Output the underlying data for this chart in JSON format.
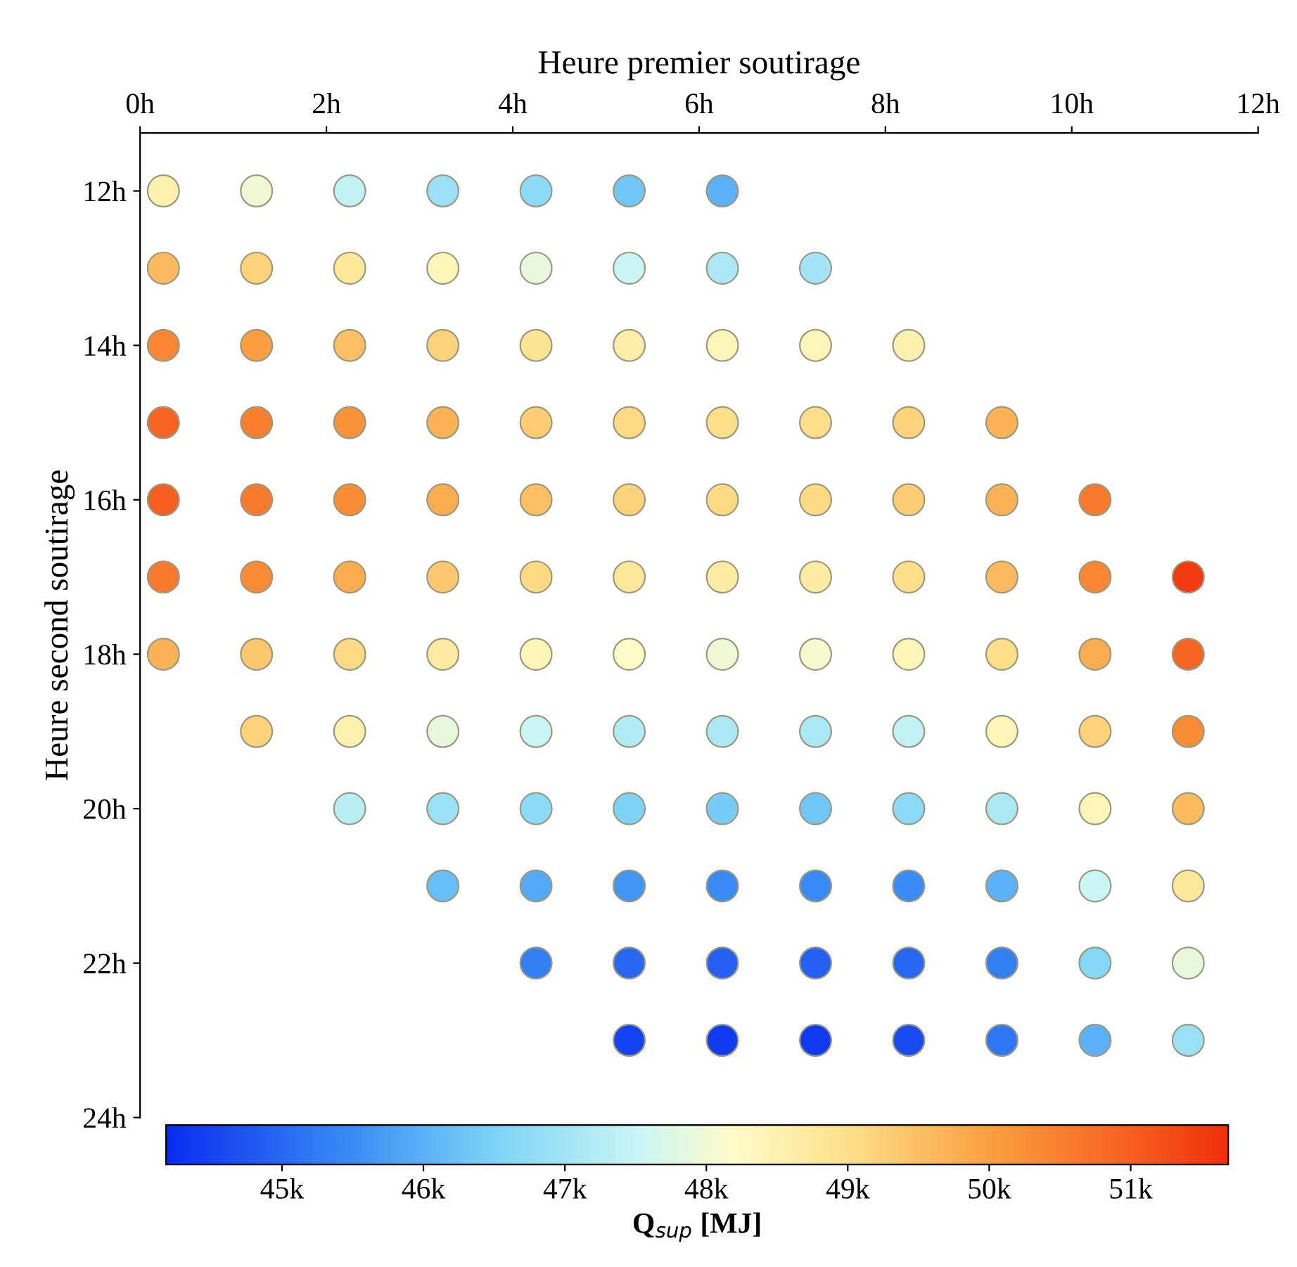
{
  "chart_data": {
    "type": "scatter",
    "xlabel": "Heure premier soutirage",
    "ylabel": "Heure second soutirage",
    "clabel": "Q$_{sup}$ [MJ]",
    "xlim": [
      0,
      12
    ],
    "xticks": [
      {
        "value": 0,
        "label": "0h"
      },
      {
        "value": 2,
        "label": "2h"
      },
      {
        "value": 4,
        "label": "4h"
      },
      {
        "value": 6,
        "label": "6h"
      },
      {
        "value": 8,
        "label": "8h"
      },
      {
        "value": 10,
        "label": "10h"
      },
      {
        "value": 12,
        "label": "12h"
      }
    ],
    "ylim": [
      24,
      11.25
    ],
    "yticks": [
      {
        "value": 12,
        "label": "12h"
      },
      {
        "value": 14,
        "label": "14h"
      },
      {
        "value": 16,
        "label": "16h"
      },
      {
        "value": 18,
        "label": "18h"
      },
      {
        "value": 20,
        "label": "20h"
      },
      {
        "value": 22,
        "label": "22h"
      },
      {
        "value": 24,
        "label": "24h"
      }
    ],
    "clim": [
      44180,
      51690
    ],
    "cticks": [
      {
        "value": 45000,
        "label": "45k"
      },
      {
        "value": 46000,
        "label": "46k"
      },
      {
        "value": 47000,
        "label": "47k"
      },
      {
        "value": 48000,
        "label": "48k"
      },
      {
        "value": 49000,
        "label": "49k"
      },
      {
        "value": 50000,
        "label": "50k"
      },
      {
        "value": 51000,
        "label": "51k"
      }
    ],
    "marker": "circle",
    "grid": false,
    "legend": false,
    "x": [
      0.25,
      1.25,
      2.25,
      3.25,
      4.25,
      5.25,
      6.25,
      0.25,
      1.25,
      2.25,
      3.25,
      4.25,
      5.25,
      6.25,
      7.25,
      0.25,
      1.25,
      2.25,
      3.25,
      4.25,
      5.25,
      6.25,
      7.25,
      8.25,
      0.25,
      1.25,
      2.25,
      3.25,
      4.25,
      5.25,
      6.25,
      7.25,
      8.25,
      9.25,
      0.25,
      1.25,
      2.25,
      3.25,
      4.25,
      5.25,
      6.25,
      7.25,
      8.25,
      9.25,
      10.25,
      0.25,
      1.25,
      2.25,
      3.25,
      4.25,
      5.25,
      6.25,
      7.25,
      8.25,
      9.25,
      10.25,
      11.25,
      0.25,
      1.25,
      2.25,
      3.25,
      4.25,
      5.25,
      6.25,
      7.25,
      8.25,
      9.25,
      10.25,
      11.25,
      1.25,
      2.25,
      3.25,
      4.25,
      5.25,
      6.25,
      7.25,
      8.25,
      9.25,
      10.25,
      11.25,
      2.25,
      3.25,
      4.25,
      5.25,
      6.25,
      7.25,
      8.25,
      9.25,
      10.25,
      11.25,
      3.25,
      4.25,
      5.25,
      6.25,
      7.25,
      8.25,
      9.25,
      10.25,
      11.25,
      4.25,
      5.25,
      6.25,
      7.25,
      8.25,
      9.25,
      10.25,
      11.25,
      5.25,
      6.25,
      7.25,
      8.25,
      9.25,
      10.25,
      11.25
    ],
    "values": [
      12,
      12,
      12,
      12,
      12,
      12,
      12,
      13,
      13,
      13,
      13,
      13,
      13,
      13,
      13,
      14,
      14,
      14,
      14,
      14,
      14,
      14,
      14,
      14,
      15,
      15,
      15,
      15,
      15,
      15,
      15,
      15,
      15,
      15,
      16,
      16,
      16,
      16,
      16,
      16,
      16,
      16,
      16,
      16,
      16,
      17,
      17,
      17,
      17,
      17,
      17,
      17,
      17,
      17,
      17,
      17,
      17,
      18,
      18,
      18,
      18,
      18,
      18,
      18,
      18,
      18,
      18,
      18,
      18,
      19,
      19,
      19,
      19,
      19,
      19,
      19,
      19,
      19,
      19,
      19,
      20,
      20,
      20,
      20,
      20,
      20,
      20,
      20,
      20,
      20,
      21,
      21,
      21,
      21,
      21,
      21,
      21,
      21,
      21,
      22,
      22,
      22,
      22,
      22,
      22,
      22,
      22,
      23,
      23,
      23,
      23,
      23,
      23,
      23
    ],
    "cvalues": [
      48500,
      48000,
      47400,
      46900,
      46700,
      46300,
      46000,
      49600,
      49200,
      48800,
      48400,
      47900,
      47500,
      47100,
      47000,
      50400,
      50000,
      49500,
      49200,
      48900,
      48600,
      48400,
      48400,
      48500,
      50900,
      50500,
      50200,
      49700,
      49300,
      49100,
      49000,
      49000,
      49200,
      49700,
      51000,
      50600,
      50300,
      49800,
      49500,
      49200,
      49100,
      49100,
      49300,
      49700,
      50600,
      50600,
      50300,
      49800,
      49400,
      49100,
      48800,
      48700,
      48700,
      49000,
      49600,
      50400,
      51500,
      49700,
      49400,
      49100,
      48700,
      48400,
      48200,
      48000,
      48100,
      48400,
      49000,
      49800,
      50900,
      49200,
      48500,
      47900,
      47500,
      47200,
      47100,
      47100,
      47400,
      48400,
      49200,
      50300,
      47300,
      46900,
      46700,
      46500,
      46400,
      46300,
      46700,
      47100,
      48400,
      49600,
      46200,
      45900,
      45600,
      45500,
      45500,
      45500,
      46000,
      47500,
      48800,
      45300,
      45000,
      44900,
      44900,
      45000,
      45300,
      46600,
      47900,
      44500,
      44400,
      44400,
      44600,
      45200,
      46000,
      46900
    ]
  }
}
